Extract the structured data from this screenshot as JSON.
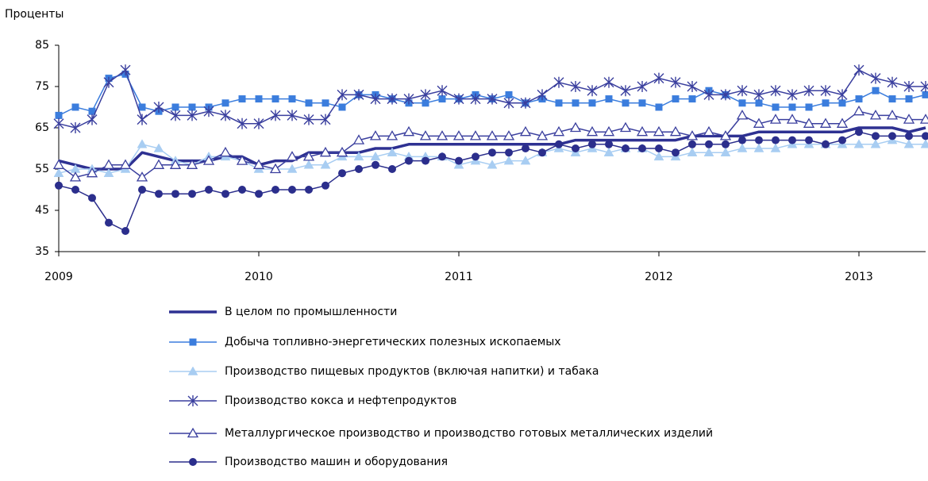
{
  "chart_data": {
    "type": "line",
    "y_label": "Проценты",
    "x": [
      0,
      1,
      2,
      3,
      4,
      5,
      6,
      7,
      8,
      9,
      10,
      11,
      12,
      13,
      14,
      15,
      16,
      17,
      18,
      19,
      20,
      21,
      22,
      23,
      24,
      25,
      26,
      27,
      28,
      29,
      30,
      31,
      32,
      33,
      34,
      35,
      36,
      37,
      38,
      39,
      40,
      41,
      42,
      43,
      44,
      45,
      46,
      47,
      48,
      49,
      50,
      51,
      52
    ],
    "xlim": [
      0,
      52
    ],
    "xticks": [
      {
        "value": 0,
        "label": "2009"
      },
      {
        "value": 12,
        "label": "2010"
      },
      {
        "value": 24,
        "label": "2011"
      },
      {
        "value": 36,
        "label": "2012"
      },
      {
        "value": 48,
        "label": "2013"
      }
    ],
    "ylim": [
      35,
      85
    ],
    "yticks": [
      35,
      45,
      55,
      65,
      75,
      85
    ],
    "grid": false,
    "series": [
      {
        "name": "В целом по промышленности",
        "color": "#2e3192",
        "marker": "none",
        "line_width": 3.5,
        "values": [
          57,
          56,
          55,
          55,
          55,
          59,
          58,
          57,
          57,
          57,
          58,
          58,
          56,
          57,
          57,
          59,
          59,
          59,
          59,
          60,
          60,
          61,
          61,
          61,
          61,
          61,
          61,
          61,
          61,
          61,
          61,
          62,
          62,
          62,
          62,
          62,
          62,
          62,
          63,
          63,
          63,
          63,
          64,
          64,
          64,
          64,
          64,
          64,
          65,
          65,
          65,
          64,
          65
        ]
      },
      {
        "name": "Добыча топливно-энергетических полезных ископаемых",
        "color": "#3b7ddd",
        "marker": "square",
        "line_width": 1.5,
        "values": [
          68,
          70,
          69,
          77,
          78,
          70,
          69,
          70,
          70,
          70,
          71,
          72,
          72,
          72,
          72,
          71,
          71,
          70,
          73,
          73,
          72,
          71,
          71,
          72,
          72,
          73,
          72,
          73,
          71,
          72,
          71,
          71,
          71,
          72,
          71,
          71,
          70,
          72,
          72,
          74,
          73,
          71,
          71,
          70,
          70,
          70,
          71,
          71,
          72,
          74,
          72,
          72,
          73
        ]
      },
      {
        "name": "Производство пищевых продуктов (включая напитки) и табака",
        "color": "#a8cdf2",
        "marker": "triangle",
        "line_width": 1.5,
        "values": [
          54,
          55,
          55,
          54,
          55,
          61,
          60,
          57,
          56,
          58,
          58,
          57,
          55,
          55,
          55,
          56,
          56,
          58,
          58,
          58,
          59,
          58,
          58,
          58,
          56,
          57,
          56,
          57,
          57,
          59,
          60,
          59,
          60,
          59,
          60,
          60,
          58,
          58,
          59,
          59,
          59,
          60,
          60,
          60,
          61,
          61,
          61,
          61,
          61,
          61,
          62,
          61,
          61
        ]
      },
      {
        "name": "Производство кокса и нефтепродуктов",
        "color": "#3a3f9e",
        "marker": "star",
        "line_width": 1.5,
        "values": [
          66,
          65,
          67,
          76,
          79,
          67,
          70,
          68,
          68,
          69,
          68,
          66,
          66,
          68,
          68,
          67,
          67,
          73,
          73,
          72,
          72,
          72,
          73,
          74,
          72,
          72,
          72,
          71,
          71,
          73,
          76,
          75,
          74,
          76,
          74,
          75,
          77,
          76,
          75,
          73,
          73,
          74,
          73,
          74,
          73,
          74,
          74,
          73,
          79,
          77,
          76,
          75,
          75
        ]
      },
      {
        "name": "Металлургическое производство и производство готовых металлических изделий",
        "color": "#3a3f9e",
        "marker": "open-triangle",
        "line_width": 1.5,
        "values": [
          56,
          53,
          54,
          56,
          56,
          53,
          56,
          56,
          56,
          57,
          59,
          57,
          56,
          55,
          58,
          58,
          59,
          59,
          62,
          63,
          63,
          64,
          63,
          63,
          63,
          63,
          63,
          63,
          64,
          63,
          64,
          65,
          64,
          64,
          65,
          64,
          64,
          64,
          63,
          64,
          63,
          68,
          66,
          67,
          67,
          66,
          66,
          66,
          69,
          68,
          68,
          67,
          67
        ]
      },
      {
        "name": "Производство машин и оборудования",
        "color": "#2b2e8c",
        "marker": "circle",
        "line_width": 1.5,
        "values": [
          51,
          50,
          48,
          42,
          40,
          50,
          49,
          49,
          49,
          50,
          49,
          50,
          49,
          50,
          50,
          50,
          51,
          54,
          55,
          56,
          55,
          57,
          57,
          58,
          57,
          58,
          59,
          59,
          60,
          59,
          61,
          60,
          61,
          61,
          60,
          60,
          60,
          59,
          61,
          61,
          61,
          62,
          62,
          62,
          62,
          62,
          61,
          62,
          64,
          63,
          63,
          63,
          63
        ]
      }
    ]
  }
}
